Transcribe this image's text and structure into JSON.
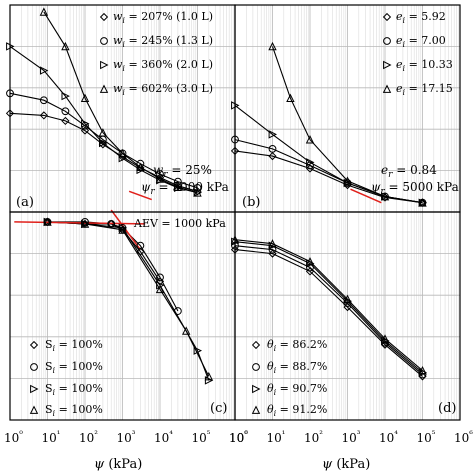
{
  "chart_data": [
    {
      "id": "a",
      "type": "scatter",
      "panel_label": "(a)",
      "x_scale": "log",
      "xlim": [
        1,
        1000000
      ],
      "annotations": [
        "w_r = 25%",
        "ψ_r = 5000 kPa"
      ],
      "legend_placement": "top-right",
      "series": [
        {
          "name": "w_i = 207% (1.0 L)",
          "marker": "diamond",
          "x": [
            1,
            8,
            30,
            100,
            300,
            1000,
            3000,
            10000,
            30000,
            100000
          ],
          "y": [
            143,
            140,
            132,
            118,
            98,
            80,
            64,
            50,
            38,
            30
          ]
        },
        {
          "name": "w_i = 245% (1.3 L)",
          "marker": "circle",
          "x": [
            1,
            8,
            30,
            100,
            300,
            1000,
            3000,
            10000,
            30000,
            100000
          ],
          "y": [
            172,
            162,
            146,
            125,
            105,
            85,
            70,
            55,
            44,
            35
          ]
        },
        {
          "name": "w_i = 360% (2.0 L)",
          "marker": "triangle-right",
          "x": [
            1,
            8,
            30,
            100,
            300,
            1000,
            3000,
            10000,
            30000,
            100000
          ],
          "y": [
            240,
            205,
            168,
            128,
            100,
            78,
            61,
            46,
            35,
            28
          ]
        },
        {
          "name": "w_i = 602% (3.0 L)",
          "marker": "triangle-up",
          "x": [
            8,
            30,
            100,
            300,
            1000,
            3000,
            10000,
            30000,
            100000
          ],
          "y": [
            290,
            240,
            165,
            115,
            85,
            65,
            48,
            36,
            28
          ]
        }
      ]
    },
    {
      "id": "b",
      "type": "scatter",
      "panel_label": "(b)",
      "x_scale": "log",
      "xlim": [
        1,
        1000000
      ],
      "annotations": [
        "e_r = 0.84",
        "ψ_r = 5000 kPa"
      ],
      "legend_placement": "top-right",
      "series": [
        {
          "name": "e_i = 5.92",
          "marker": "diamond",
          "x": [
            1,
            10,
            100,
            1000,
            10000,
            100000
          ],
          "y": [
            5.9,
            5.4,
            4.2,
            2.6,
            1.4,
            0.9
          ]
        },
        {
          "name": "e_i = 7.00",
          "marker": "circle",
          "x": [
            1,
            10,
            100,
            1000,
            10000,
            100000
          ],
          "y": [
            7.0,
            6.1,
            4.5,
            2.8,
            1.5,
            0.9
          ]
        },
        {
          "name": "e_i = 10.33",
          "marker": "triangle-right",
          "x": [
            1,
            10,
            100,
            1000,
            10000,
            100000
          ],
          "y": [
            10.3,
            7.5,
            4.8,
            2.8,
            1.5,
            0.9
          ]
        },
        {
          "name": "e_i = 17.15",
          "marker": "triangle-up",
          "x": [
            10,
            30,
            100,
            1000,
            10000,
            100000
          ],
          "y": [
            16,
            11,
            7,
            3,
            1.5,
            0.9
          ]
        }
      ]
    },
    {
      "id": "c",
      "type": "scatter",
      "panel_label": "(c)",
      "x_scale": "log",
      "xlim": [
        1,
        1000000
      ],
      "xlabel": "ψ (kPa)",
      "annotations": [
        "AEV = 1000 kPa"
      ],
      "legend_placement": "bottom-left",
      "series": [
        {
          "name": "S_i = 100%",
          "marker": "diamond",
          "x": [
            10,
            100,
            500,
            1000,
            3000,
            10000
          ],
          "y": [
            100,
            99,
            99,
            96,
            85,
            70
          ]
        },
        {
          "name": "S_i = 100%",
          "marker": "circle",
          "x": [
            10,
            100,
            500,
            1000,
            3000,
            10000,
            30000
          ],
          "y": [
            100,
            100,
            99,
            97,
            88,
            72,
            55
          ]
        },
        {
          "name": "S_i = 100%",
          "marker": "triangle-right",
          "x": [
            10,
            100,
            1000,
            10000,
            100000,
            200000
          ],
          "y": [
            100,
            99,
            97,
            68,
            35,
            20
          ]
        },
        {
          "name": "S_i = 100%",
          "marker": "triangle-up",
          "x": [
            10,
            100,
            1000,
            10000,
            50000,
            200000
          ],
          "y": [
            100,
            99,
            96,
            66,
            45,
            22
          ]
        }
      ]
    },
    {
      "id": "d",
      "type": "scatter",
      "panel_label": "(d)",
      "x_scale": "log",
      "xlim": [
        1,
        1000000
      ],
      "xlabel": "ψ (kPa)",
      "legend_placement": "bottom-left",
      "series": [
        {
          "name": "θ_i = 86.2%",
          "marker": "diamond",
          "x": [
            1,
            10,
            100,
            1000,
            10000,
            100000
          ],
          "y": [
            86,
            84,
            75,
            57,
            38,
            22
          ]
        },
        {
          "name": "θ_i = 88.7%",
          "marker": "circle",
          "x": [
            1,
            10,
            100,
            1000,
            10000,
            100000
          ],
          "y": [
            88,
            86,
            77,
            59,
            39,
            23
          ]
        },
        {
          "name": "θ_i = 90.7%",
          "marker": "triangle-right",
          "x": [
            1,
            10,
            100,
            1000,
            10000,
            100000
          ],
          "y": [
            90,
            88,
            79,
            60,
            40,
            24
          ]
        },
        {
          "name": "θ_i = 91.2%",
          "marker": "triangle-up",
          "x": [
            1,
            10,
            100,
            1000,
            10000,
            100000
          ],
          "y": [
            91,
            89,
            80,
            61,
            41,
            25
          ]
        }
      ]
    }
  ],
  "x_ticks": [
    "10⁰",
    "10¹",
    "10²",
    "10³",
    "10⁴",
    "10⁵",
    "10⁶"
  ],
  "xlabel": "ψ (kPa)",
  "texts": {
    "a_label": "(a)",
    "b_label": "(b)",
    "c_label": "(c)",
    "d_label": "(d)",
    "a_ann1": "w",
    "a_ann1_sub": "r",
    "a_ann1_rest": " = 25%",
    "a_ann2": "ψ",
    "a_ann2_sub": "r",
    "a_ann2_rest": " = 5000 kPa",
    "b_ann1": "e",
    "b_ann1_sub": "r",
    "b_ann1_rest": " = 0.84",
    "b_ann2": "ψ",
    "b_ann2_sub": "r",
    "b_ann2_rest": " = 5000 kPa",
    "c_aev": "AEV = 1000 kPa",
    "leg_a": [
      "w = 207% (1.0 L)",
      "w = 245% (1.3 L)",
      "w = 360% (2.0 L)",
      "w = 602% (3.0 L)"
    ],
    "leg_b": [
      "e = 5.92",
      "e = 7.00",
      "e = 10.33",
      "e = 17.15"
    ],
    "leg_c": [
      "S = 100%",
      "S = 100%",
      "S = 100%",
      "S = 100%"
    ],
    "leg_d": [
      "θ = 86.2%",
      "θ = 88.7%",
      "θ = 90.7%",
      "θ = 91.2%"
    ]
  }
}
